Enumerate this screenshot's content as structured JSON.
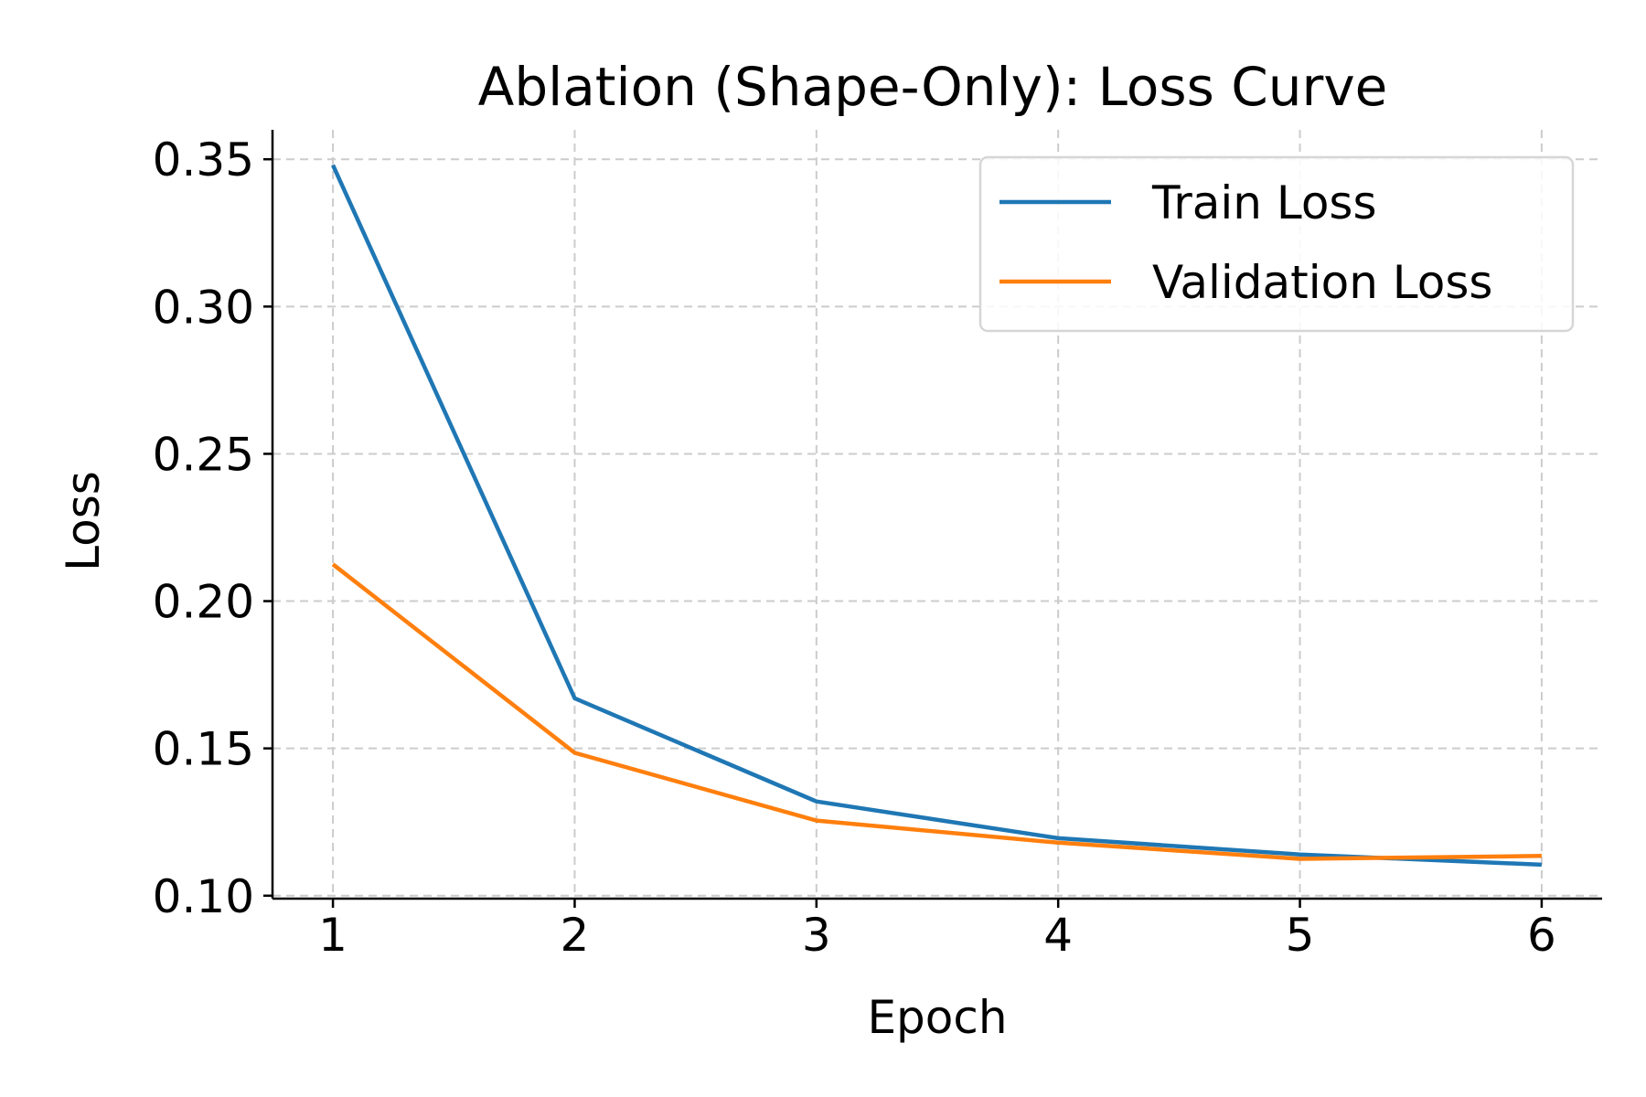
{
  "chart_data": {
    "type": "line",
    "title": "Ablation (Shape-Only): Loss Curve",
    "xlabel": "Epoch",
    "ylabel": "Loss",
    "x": [
      1,
      2,
      3,
      4,
      5,
      6
    ],
    "xticks": [
      "1",
      "2",
      "3",
      "4",
      "5",
      "6"
    ],
    "yticks": [
      "0.10",
      "0.15",
      "0.20",
      "0.25",
      "0.30",
      "0.35"
    ],
    "xlim": [
      0.75,
      6.25
    ],
    "ylim": [
      0.099,
      0.36
    ],
    "grid": true,
    "legend_position": "top-right",
    "series": [
      {
        "name": "Train Loss",
        "color": "#1f77b4",
        "values": [
          0.348,
          0.167,
          0.132,
          0.1195,
          0.114,
          0.1105
        ]
      },
      {
        "name": "Validation Loss",
        "color": "#ff7f0e",
        "values": [
          0.2125,
          0.1485,
          0.1255,
          0.118,
          0.1125,
          0.1135
        ]
      }
    ]
  }
}
